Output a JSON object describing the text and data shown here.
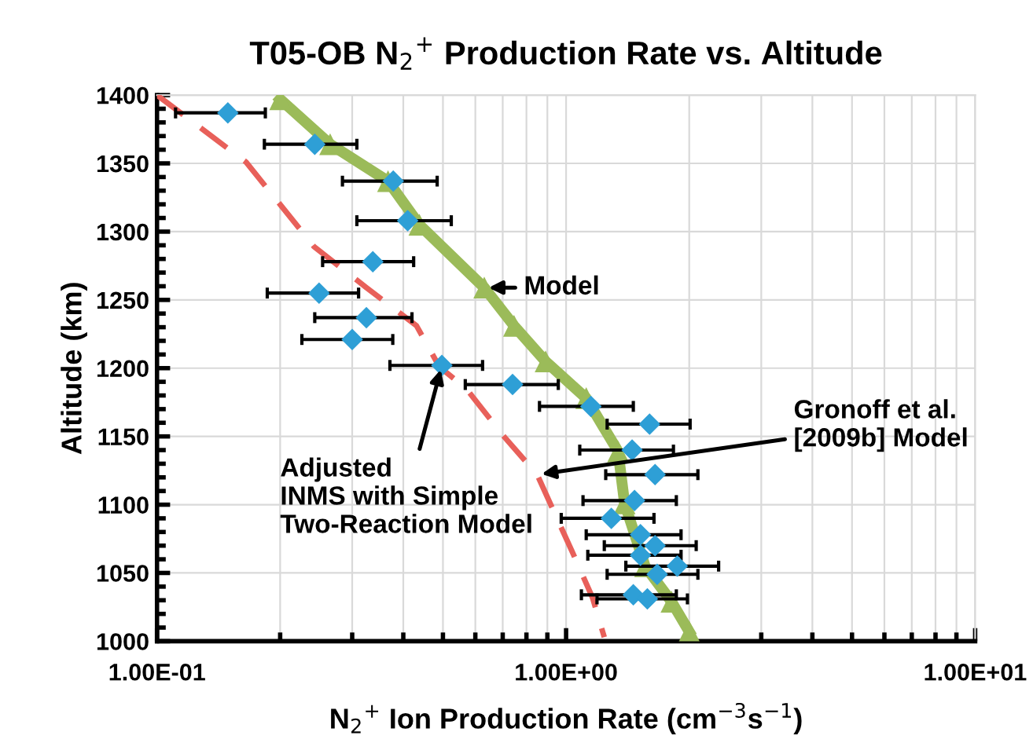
{
  "chart_data": {
    "type": "scatter",
    "title": "T05-OB N$_{2}$$^{+}$ Production Rate vs. Altitude",
    "xlabel": "N$_{2}$$^{+}$ Ion Production Rate (cm$^{−3}$s$^{−1}$)",
    "ylabel": "Altitude (km)",
    "log": "x",
    "xlim": [
      0.1,
      10
    ],
    "xticks": [
      {
        "value": 0.1,
        "label": "1.00E-01"
      },
      {
        "value": 1,
        "label": "1.00E+00"
      },
      {
        "value": 10,
        "label": "1.00E+01"
      }
    ],
    "ylim": [
      1000,
      1400
    ],
    "yticks": [
      1000,
      1050,
      1100,
      1150,
      1200,
      1250,
      1300,
      1350,
      1400
    ],
    "grid": true,
    "legend": false,
    "series": [
      {
        "type": "line",
        "color": "#e8605a",
        "marker": "none",
        "line_style": "dashed",
        "x": [
          0.1,
          0.165,
          0.242,
          0.325,
          0.431,
          0.49,
          0.57,
          0.7,
          0.85,
          0.94,
          1.03,
          1.16,
          1.24
        ],
        "values": [
          1400,
          1351,
          1289,
          1259,
          1231,
          1201,
          1185,
          1151,
          1122,
          1093,
          1067,
          1032,
          1003
        ]
      },
      {
        "type": "line",
        "color": "#9bbb59",
        "marker": "triangle",
        "line_style": "solid",
        "x": [
          0.2,
          0.265,
          0.367,
          0.438,
          0.631,
          0.746,
          0.891,
          1.12,
          1.34,
          1.39,
          1.56,
          1.81,
          2.0
        ],
        "values": [
          1397,
          1364,
          1337,
          1305,
          1259,
          1231,
          1205,
          1178,
          1139,
          1101,
          1055,
          1029,
          1007
        ]
      },
      {
        "color": "#2e9fd6",
        "marker": "diamond",
        "x": [
          0.149,
          0.243,
          0.378,
          0.41,
          0.337,
          0.249,
          0.325,
          0.3,
          0.497,
          0.74,
          1.15,
          1.6,
          1.45,
          1.65,
          1.47,
          1.29,
          1.52,
          1.65,
          1.52,
          1.87,
          1.67,
          1.46,
          1.58
        ],
        "values": [
          1387,
          1364,
          1337,
          1308,
          1278,
          1255,
          1237,
          1221,
          1202,
          1188,
          1172,
          1159,
          1140,
          1122,
          1103,
          1090,
          1078,
          1070,
          1063,
          1055,
          1049,
          1034,
          1031
        ],
        "xerrors": [
          [
            0.111,
            0.184
          ],
          [
            0.183,
            0.308
          ],
          [
            0.284,
            0.484
          ],
          [
            0.308,
            0.524
          ],
          [
            0.254,
            0.424
          ],
          [
            0.186,
            0.311
          ],
          [
            0.243,
            0.42
          ],
          [
            0.226,
            0.377
          ],
          [
            0.371,
            0.625
          ],
          [
            0.567,
            0.957
          ],
          [
            0.861,
            1.46
          ],
          [
            1.26,
            2.01
          ],
          [
            1.08,
            1.83
          ],
          [
            1.25,
            2.1
          ],
          [
            1.1,
            1.86
          ],
          [
            0.973,
            1.64
          ],
          [
            1.12,
            1.91
          ],
          [
            1.24,
            2.08
          ],
          [
            1.13,
            1.91
          ],
          [
            1.4,
            2.36
          ],
          [
            1.26,
            2.1
          ],
          [
            1.09,
            1.86
          ],
          [
            1.19,
            1.98
          ]
        ]
      }
    ],
    "annotations": [
      {
        "text": "Model",
        "x": 0.631,
        "y": 1259
      },
      {
        "text": "Gronoff et al.\n[2009b] Model",
        "x": 0.85,
        "y": 1122
      },
      {
        "text": "Adjusted\nINMS with Simple\nTwo-Reaction Model",
        "x": 0.497,
        "y": 1202
      }
    ]
  }
}
